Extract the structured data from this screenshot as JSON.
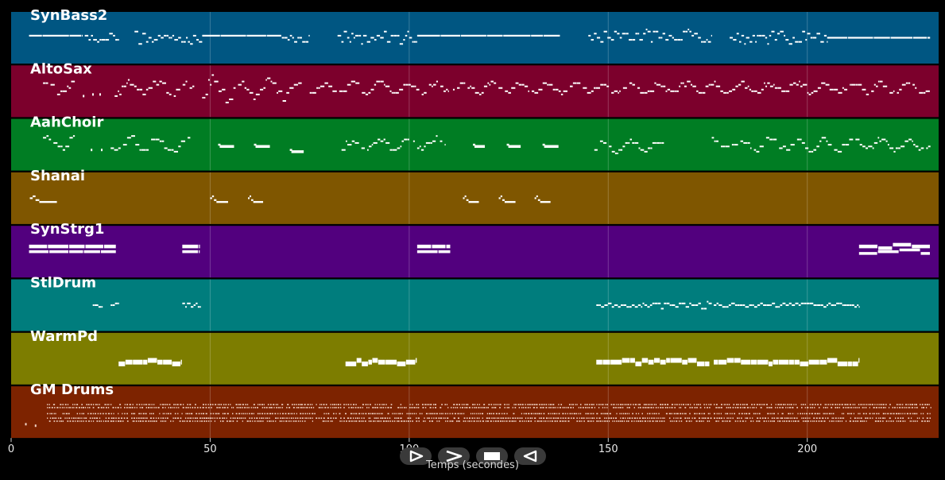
{
  "xaxis": {
    "label": "Temps (secondes)",
    "range": [
      0,
      233
    ],
    "ticks": [
      0,
      50,
      100,
      150,
      200
    ]
  },
  "tracks": [
    {
      "name": "SynBass2",
      "color": "#005682",
      "pitch": [
        36,
        58
      ],
      "segments": [
        {
          "start": 4.5,
          "end": 18,
          "pattern": "sustain",
          "base": 48,
          "amp": 0
        },
        {
          "start": 18.5,
          "end": 27,
          "pattern": "dense",
          "base": 47,
          "amp": 2
        },
        {
          "start": 31,
          "end": 48,
          "pattern": "dense",
          "base": 47,
          "amp": 3
        },
        {
          "start": 48,
          "end": 68,
          "pattern": "sustain",
          "base": 48,
          "amp": 0
        },
        {
          "start": 68,
          "end": 75,
          "pattern": "dense",
          "base": 47,
          "amp": 2
        },
        {
          "start": 82,
          "end": 102,
          "pattern": "dense",
          "base": 47,
          "amp": 3
        },
        {
          "start": 102,
          "end": 138,
          "pattern": "sustain",
          "base": 48,
          "amp": 0
        },
        {
          "start": 145,
          "end": 176,
          "pattern": "dense",
          "base": 48,
          "amp": 3
        },
        {
          "start": 180.5,
          "end": 205,
          "pattern": "dense",
          "base": 47,
          "amp": 3
        },
        {
          "start": 205,
          "end": 231,
          "pattern": "sustain",
          "base": 47,
          "amp": 1
        }
      ]
    },
    {
      "name": "AltoSax",
      "color": "#7c002c",
      "pitch": [
        52,
        80
      ],
      "segments": [
        {
          "start": 8,
          "end": 16,
          "pattern": "melody",
          "base": 68,
          "amp": 3
        },
        {
          "start": 18,
          "end": 23,
          "pattern": "sparse",
          "base": 64,
          "amp": 1
        },
        {
          "start": 26,
          "end": 46,
          "pattern": "melody",
          "base": 68,
          "amp": 4
        },
        {
          "start": 48,
          "end": 73,
          "pattern": "melody",
          "base": 67,
          "amp": 6
        },
        {
          "start": 75,
          "end": 110,
          "pattern": "melody",
          "base": 68,
          "amp": 3
        },
        {
          "start": 111,
          "end": 231,
          "pattern": "melody",
          "base": 68,
          "amp": 3
        }
      ]
    },
    {
      "name": "AahChoir",
      "color": "#007d23",
      "pitch": [
        52,
        78
      ],
      "segments": [
        {
          "start": 8,
          "end": 16,
          "pattern": "melody",
          "base": 66,
          "amp": 3
        },
        {
          "start": 20,
          "end": 23,
          "pattern": "sparse",
          "base": 62,
          "amp": 1
        },
        {
          "start": 25,
          "end": 45,
          "pattern": "melody",
          "base": 65,
          "amp": 4
        },
        {
          "start": 52,
          "end": 56,
          "pattern": "block",
          "base": 64,
          "amp": 1
        },
        {
          "start": 61,
          "end": 65,
          "pattern": "block",
          "base": 64,
          "amp": 1
        },
        {
          "start": 70,
          "end": 73.5,
          "pattern": "block",
          "base": 61,
          "amp": 1
        },
        {
          "start": 83,
          "end": 100,
          "pattern": "melody",
          "base": 65,
          "amp": 3
        },
        {
          "start": 101,
          "end": 109,
          "pattern": "melody",
          "base": 66,
          "amp": 3
        },
        {
          "start": 116,
          "end": 119,
          "pattern": "block",
          "base": 64,
          "amp": 1
        },
        {
          "start": 124.5,
          "end": 128,
          "pattern": "block",
          "base": 64,
          "amp": 1
        },
        {
          "start": 133.5,
          "end": 137.5,
          "pattern": "block",
          "base": 64,
          "amp": 1
        },
        {
          "start": 146.5,
          "end": 164,
          "pattern": "melody",
          "base": 64,
          "amp": 3
        },
        {
          "start": 176,
          "end": 231,
          "pattern": "melody",
          "base": 65,
          "amp": 3
        }
      ]
    },
    {
      "name": "Shanai",
      "color": "#7f5600",
      "pitch": [
        56,
        80
      ],
      "segments": [
        {
          "start": 4.7,
          "end": 11.5,
          "pattern": "phrase",
          "base": 66,
          "amp": 2
        },
        {
          "start": 50,
          "end": 54.5,
          "pattern": "phrase",
          "base": 66,
          "amp": 2
        },
        {
          "start": 59.5,
          "end": 63.3,
          "pattern": "phrase",
          "base": 66,
          "amp": 2
        },
        {
          "start": 113.5,
          "end": 117.5,
          "pattern": "phrase",
          "base": 66,
          "amp": 2
        },
        {
          "start": 122.5,
          "end": 126.7,
          "pattern": "phrase",
          "base": 66,
          "amp": 2
        },
        {
          "start": 131.5,
          "end": 135.5,
          "pattern": "phrase",
          "base": 66,
          "amp": 2
        }
      ]
    },
    {
      "name": "SynStrg1",
      "color": "#52007e",
      "pitch": [
        50,
        76
      ],
      "segments": [
        {
          "start": 4.5,
          "end": 26.5,
          "pattern": "chord",
          "base": 64,
          "amp": 0
        },
        {
          "start": 43,
          "end": 47.5,
          "pattern": "chord",
          "base": 64,
          "amp": 0
        },
        {
          "start": 102,
          "end": 110.5,
          "pattern": "chord",
          "base": 64,
          "amp": 0
        },
        {
          "start": 213,
          "end": 231,
          "pattern": "chord",
          "base": 64,
          "amp": 1
        }
      ]
    },
    {
      "name": "StlDrum",
      "color": "#007d7d",
      "pitch": [
        48,
        74
      ],
      "segments": [
        {
          "start": 20.5,
          "end": 23,
          "pattern": "dense",
          "base": 61,
          "amp": 1
        },
        {
          "start": 25,
          "end": 27,
          "pattern": "dense",
          "base": 61,
          "amp": 1
        },
        {
          "start": 43,
          "end": 47.5,
          "pattern": "dense",
          "base": 61,
          "amp": 1
        },
        {
          "start": 147,
          "end": 176,
          "pattern": "dense",
          "base": 61,
          "amp": 2
        },
        {
          "start": 176.5,
          "end": 213,
          "pattern": "dense",
          "base": 61,
          "amp": 1
        }
      ]
    },
    {
      "name": "WarmPd",
      "color": "#7d7d00",
      "pitch": [
        50,
        76
      ],
      "segments": [
        {
          "start": 27,
          "end": 43,
          "pattern": "pad",
          "base": 61,
          "amp": 1
        },
        {
          "start": 84,
          "end": 102,
          "pattern": "pad",
          "base": 61,
          "amp": 1
        },
        {
          "start": 147,
          "end": 175.5,
          "pattern": "pad",
          "base": 61,
          "amp": 1
        },
        {
          "start": 176.5,
          "end": 213,
          "pattern": "pad",
          "base": 61,
          "amp": 1
        }
      ]
    },
    {
      "name": "GM Drums",
      "color": "#7d2300",
      "pitch": [
        30,
        60
      ],
      "segments": [
        {
          "start": 3.5,
          "end": 7,
          "pattern": "sparse",
          "base": 36,
          "amp": 2
        },
        {
          "start": 9,
          "end": 83,
          "pattern": "drums",
          "base": 42,
          "amp": 3
        },
        {
          "start": 83.5,
          "end": 146.5,
          "pattern": "drums",
          "base": 42,
          "amp": 3
        },
        {
          "start": 147,
          "end": 176,
          "pattern": "drums",
          "base": 42,
          "amp": 3
        },
        {
          "start": 176.5,
          "end": 231,
          "pattern": "drums",
          "base": 42,
          "amp": 3
        }
      ]
    }
  ],
  "controls": [
    {
      "name": "play-button",
      "icon": "play-icon"
    },
    {
      "name": "fast-forward-button",
      "icon": "fast-forward-icon"
    },
    {
      "name": "stop-button",
      "icon": "stop-icon"
    },
    {
      "name": "rewind-button",
      "icon": "rewind-icon"
    }
  ]
}
